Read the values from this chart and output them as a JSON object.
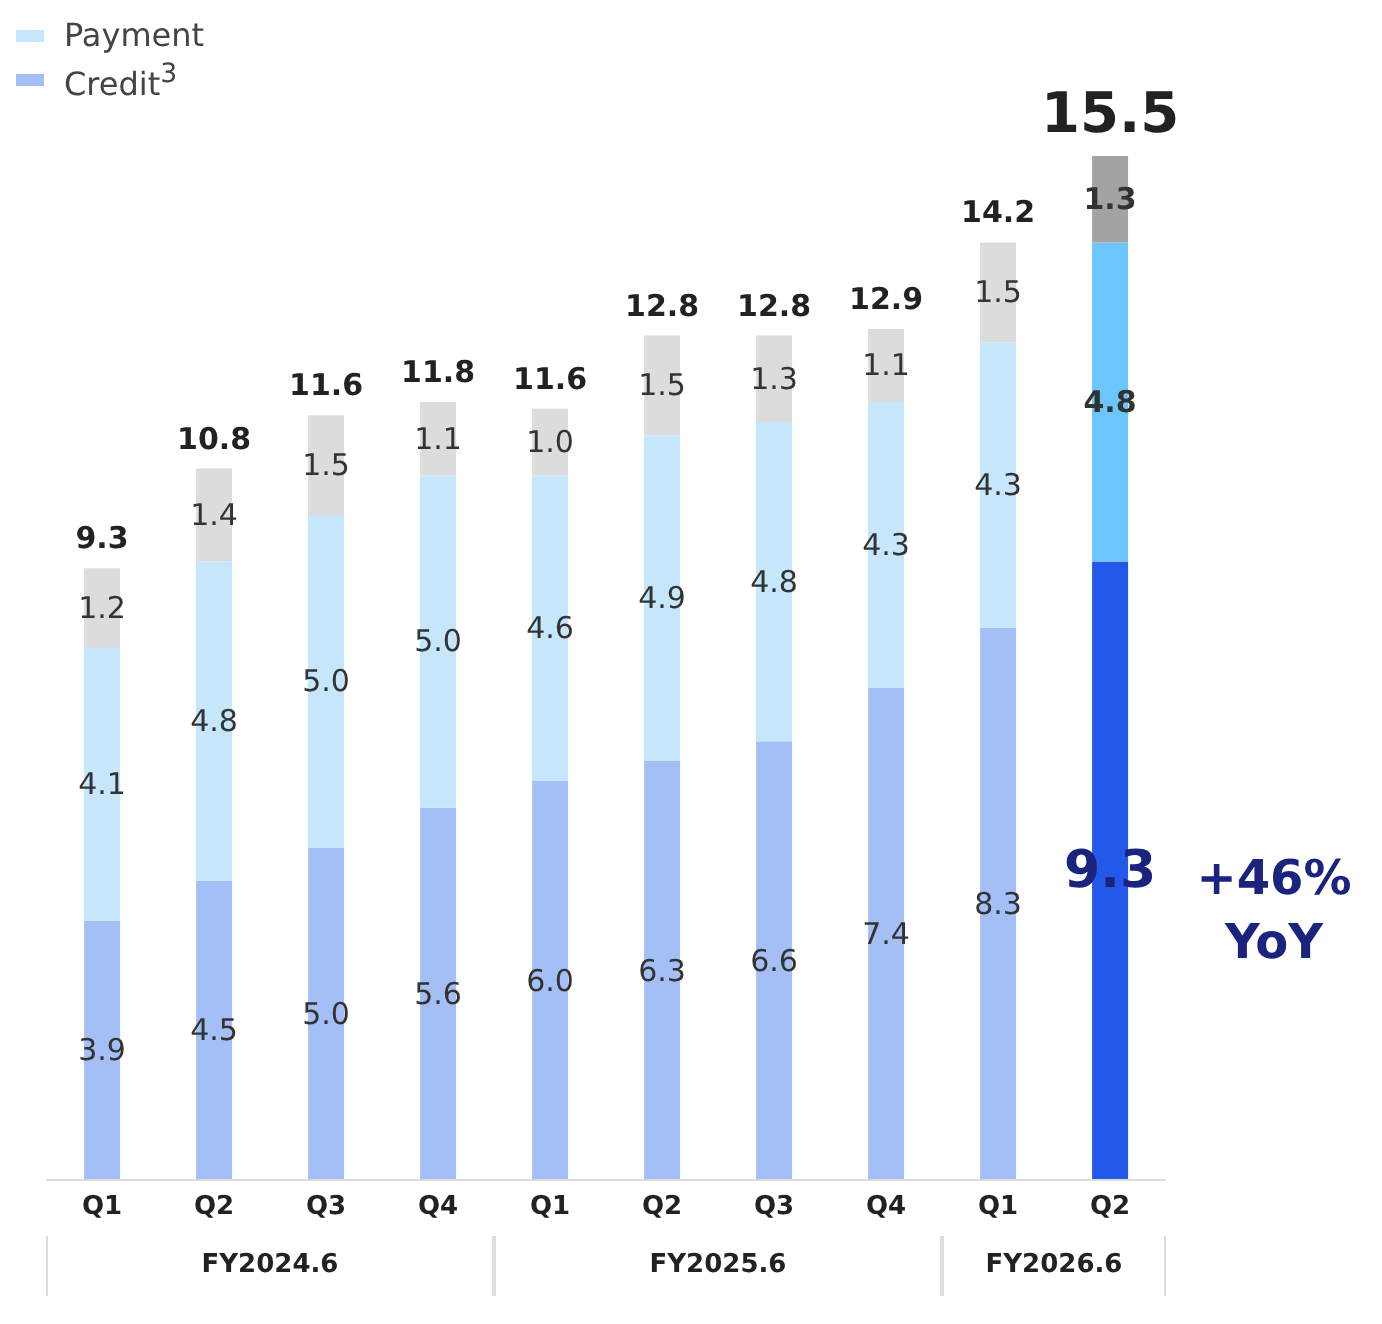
{
  "chart_data": {
    "type": "bar",
    "stacked": true,
    "categories": [
      "Q1",
      "Q2",
      "Q3",
      "Q4",
      "Q1",
      "Q2",
      "Q3",
      "Q4",
      "Q1",
      "Q2"
    ],
    "series": [
      {
        "name": "Credit$^{3}$",
        "color": "#a4bff5",
        "colors": [
          "#a4bff5",
          "#a4bff5",
          "#a4bff5",
          "#a4bff5",
          "#a4bff5",
          "#a4bff5",
          "#a4bff5",
          "#a4bff5",
          "#a4bff5",
          "#2458e8"
        ],
        "values": [
          3.9,
          4.5,
          5.0,
          5.6,
          6.0,
          6.3,
          6.6,
          7.4,
          8.3,
          9.3
        ],
        "value_labels": [
          "3.9",
          "4.5",
          "5.0",
          "5.6",
          "6.0",
          "6.3",
          "6.6",
          "7.4",
          "8.3",
          "9.3"
        ]
      },
      {
        "name": "Payment",
        "color": "#c5e6fb",
        "colors": [
          "#c5e6fb",
          "#c5e6fb",
          "#c5e6fb",
          "#c5e6fb",
          "#c5e6fb",
          "#c5e6fb",
          "#c5e6fb",
          "#c5e6fb",
          "#c5e6fb",
          "#6cc6fb"
        ],
        "values": [
          4.1,
          4.8,
          5.0,
          5.0,
          4.6,
          4.9,
          4.8,
          4.3,
          4.3,
          4.8
        ],
        "value_labels": [
          "4.1",
          "4.8",
          "5.0",
          "5.0",
          "4.6",
          "4.9",
          "4.8",
          "4.3",
          "4.3",
          "4.8"
        ]
      },
      {
        "color": "#dcdcdc",
        "colors": [
          "#dcdcdc",
          "#dcdcdc",
          "#dcdcdc",
          "#dcdcdc",
          "#dcdcdc",
          "#dcdcdc",
          "#dcdcdc",
          "#dcdcdc",
          "#dcdcdc",
          "#a3a3a3"
        ],
        "values": [
          1.2,
          1.4,
          1.5,
          1.1,
          1.0,
          1.5,
          1.3,
          1.1,
          1.5,
          1.3
        ],
        "value_labels": [
          "1.2",
          "1.4",
          "1.5",
          "1.1",
          "1.0",
          "1.5",
          "1.3",
          "1.1",
          "1.5",
          "1.3"
        ]
      }
    ],
    "totals": [
      "9.3",
      "10.8",
      "11.6",
      "11.8",
      "11.6",
      "12.8",
      "12.8",
      "12.9",
      "14.2",
      "15.5"
    ],
    "legend": "top left",
    "grid": false,
    "annotations": [
      "FY2024.6",
      "FY2025.6",
      "FY2026.6",
      "+46% YoY"
    ]
  }
}
